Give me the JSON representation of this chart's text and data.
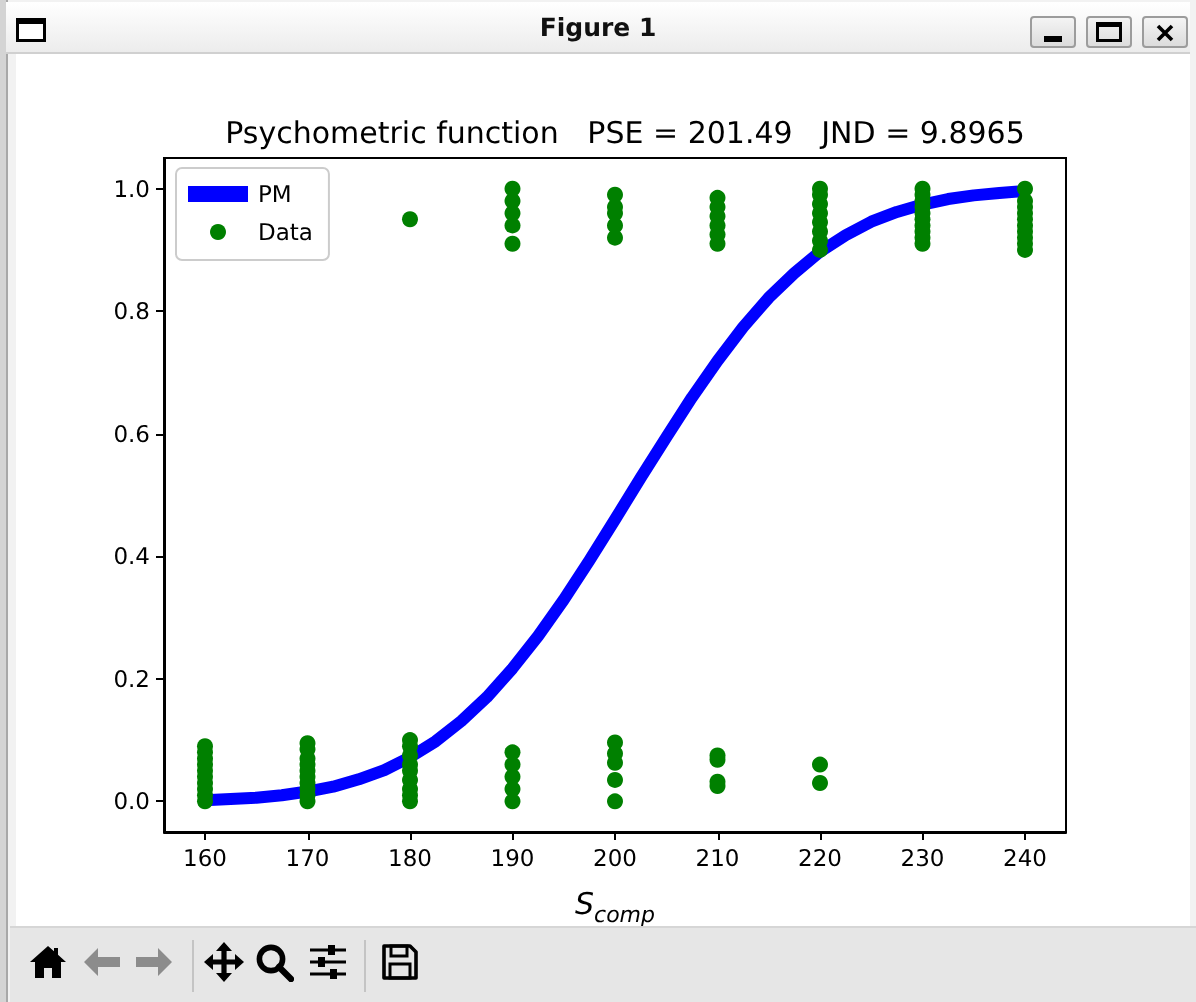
{
  "chart_data": {
    "type": "line",
    "title": "Psychometric function   PSE = 201.49   JND = 9.8965",
    "xlabel": "S$_{comp}$",
    "annotations": [
      "Figure 1"
    ],
    "xlim": [
      156,
      244
    ],
    "xticks": [
      160,
      170,
      180,
      190,
      200,
      210,
      220,
      230,
      240
    ],
    "ylim": [
      -0.05,
      1.05
    ],
    "yticks": [
      {
        "value": 0,
        "label": "0.0"
      },
      {
        "value": 0.2,
        "label": "0.2"
      },
      {
        "value": 0.4,
        "label": "0.4"
      },
      {
        "value": 0.6,
        "label": "0.6"
      },
      {
        "value": 0.8,
        "label": "0.8"
      },
      {
        "value": 1,
        "label": "1.0"
      }
    ],
    "grid": false,
    "legend": "top left",
    "series": [
      {
        "name": "PM",
        "color": "#0000ff",
        "x": [
          160,
          162.5,
          165,
          167.5,
          170,
          172.5,
          175,
          177.5,
          180,
          182.5,
          185,
          187.5,
          190,
          192.5,
          195,
          197.5,
          200,
          202.5,
          205,
          207.5,
          210,
          212.5,
          215,
          217.5,
          220,
          222.5,
          225,
          227.5,
          230,
          232.5,
          235,
          237.5,
          240
        ],
        "values": [
          0.002,
          0.004,
          0.006,
          0.01,
          0.016,
          0.024,
          0.036,
          0.051,
          0.072,
          0.098,
          0.131,
          0.17,
          0.217,
          0.27,
          0.329,
          0.393,
          0.46,
          0.528,
          0.594,
          0.659,
          0.719,
          0.774,
          0.822,
          0.862,
          0.897,
          0.924,
          0.946,
          0.962,
          0.974,
          0.983,
          0.989,
          0.993,
          0.996
        ]
      },
      {
        "name": "Data",
        "type": "scatter",
        "marker": "circle",
        "color": "#008000",
        "x": [
          160,
          160,
          160,
          160,
          160,
          160,
          160,
          160,
          160,
          160,
          170,
          170,
          170,
          170,
          170,
          170,
          170,
          170,
          170,
          170,
          180,
          180,
          180,
          180,
          180,
          180,
          180,
          180,
          180,
          180,
          190,
          190,
          190,
          190,
          190,
          190,
          190,
          190,
          190,
          190,
          200,
          200,
          200,
          200,
          200,
          200,
          200,
          200,
          200,
          200,
          210,
          210,
          210,
          210,
          210,
          210,
          210,
          210,
          210,
          210,
          220,
          220,
          220,
          220,
          220,
          220,
          220,
          220,
          220,
          220,
          230,
          230,
          230,
          230,
          230,
          230,
          230,
          230,
          230,
          230,
          240,
          240,
          240,
          240,
          240,
          240,
          240,
          240,
          240,
          240
        ],
        "values": [
          0.0,
          0.01,
          0.02,
          0.03,
          0.04,
          0.05,
          0.06,
          0.07,
          0.08,
          0.09,
          0.0,
          0.01,
          0.02,
          0.03,
          0.04,
          0.05,
          0.06,
          0.07,
          0.085,
          0.095,
          0.0,
          0.01,
          0.02,
          0.035,
          0.05,
          0.06,
          0.075,
          0.09,
          0.1,
          0.95,
          0.0,
          0.02,
          0.04,
          0.06,
          0.08,
          0.91,
          0.94,
          0.96,
          0.98,
          1.0,
          0.0,
          0.035,
          0.063,
          0.078,
          0.096,
          0.92,
          0.94,
          0.96,
          0.97,
          0.99,
          0.025,
          0.032,
          0.068,
          0.075,
          0.91,
          0.925,
          0.94,
          0.955,
          0.97,
          0.985,
          0.03,
          0.06,
          0.9,
          0.915,
          0.93,
          0.945,
          0.96,
          0.975,
          0.99,
          1.0,
          0.91,
          0.92,
          0.93,
          0.94,
          0.95,
          0.96,
          0.97,
          0.98,
          0.99,
          1.0,
          0.9,
          0.91,
          0.92,
          0.93,
          0.94,
          0.95,
          0.96,
          0.97,
          0.98,
          1.0
        ]
      }
    ]
  }
}
